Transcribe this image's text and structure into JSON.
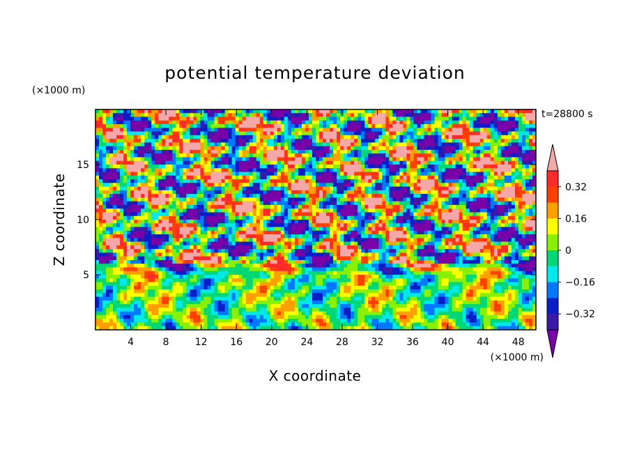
{
  "chart_data": {
    "type": "heatmap",
    "title": "potential temperature deviation",
    "xlabel": "X coordinate",
    "ylabel": "Z coordinate",
    "x_unit": "(×1000 m)",
    "y_unit": "(×1000 m)",
    "time_label": "t=28800 s",
    "xlim": [
      0,
      50
    ],
    "ylim": [
      0,
      20
    ],
    "x_ticks": [
      "4",
      "8",
      "12",
      "16",
      "20",
      "24",
      "28",
      "32",
      "36",
      "40",
      "44",
      "48"
    ],
    "y_ticks": [
      "5",
      "10",
      "15"
    ],
    "colorbar": {
      "levels": [
        -0.4,
        -0.32,
        -0.24,
        -0.16,
        -0.08,
        0,
        0.08,
        0.16,
        0.24,
        0.32,
        0.4
      ],
      "labels": [
        "0.32",
        "0.16",
        "0",
        "−0.16",
        "−0.32"
      ],
      "colors": [
        "#7a00a8",
        "#3a1aa8",
        "#0a1ec8",
        "#0078ff",
        "#00e8e8",
        "#00d878",
        "#88f000",
        "#ffff00",
        "#ffa000",
        "#ff4000",
        "#ff2a2a",
        "#f4a8a8"
      ]
    }
  }
}
